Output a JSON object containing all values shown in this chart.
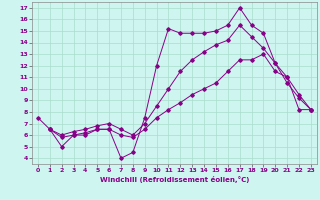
{
  "xlabel": "Windchill (Refroidissement éolien,°C)",
  "bg_color": "#cef5f0",
  "line_color": "#880088",
  "grid_color": "#aaddcc",
  "xlim": [
    -0.5,
    23.5
  ],
  "ylim": [
    3.5,
    17.5
  ],
  "xticks": [
    0,
    1,
    2,
    3,
    4,
    5,
    6,
    7,
    8,
    9,
    10,
    11,
    12,
    13,
    14,
    15,
    16,
    17,
    18,
    19,
    20,
    21,
    22,
    23
  ],
  "yticks": [
    4,
    5,
    6,
    7,
    8,
    9,
    10,
    11,
    12,
    13,
    14,
    15,
    16,
    17
  ],
  "line1_x": [
    0,
    1,
    2,
    3,
    4,
    5,
    6,
    7,
    8,
    9,
    10,
    11,
    12,
    13,
    14,
    15,
    16,
    17,
    18,
    19,
    20,
    21,
    22,
    23
  ],
  "line1_y": [
    7.5,
    6.5,
    5.0,
    6.0,
    6.0,
    6.5,
    6.5,
    4.0,
    4.5,
    7.5,
    12.0,
    15.2,
    14.8,
    14.8,
    14.8,
    15.0,
    15.5,
    17.0,
    15.5,
    14.8,
    12.2,
    10.5,
    9.2,
    8.2
  ],
  "line2_x": [
    1,
    2,
    3,
    4,
    5,
    6,
    7,
    8,
    9,
    10,
    11,
    12,
    13,
    14,
    15,
    16,
    17,
    18,
    19,
    20,
    21,
    22,
    23
  ],
  "line2_y": [
    6.5,
    6.0,
    6.3,
    6.5,
    6.8,
    7.0,
    6.5,
    6.0,
    7.0,
    8.5,
    10.0,
    11.5,
    12.5,
    13.2,
    13.8,
    14.2,
    15.5,
    14.5,
    13.5,
    12.2,
    11.0,
    9.5,
    8.2
  ],
  "line3_x": [
    1,
    2,
    3,
    4,
    5,
    6,
    7,
    8,
    9,
    10,
    11,
    12,
    13,
    14,
    15,
    16,
    17,
    18,
    19,
    20,
    21,
    22,
    23
  ],
  "line3_y": [
    6.5,
    5.8,
    6.0,
    6.2,
    6.5,
    6.5,
    6.0,
    5.8,
    6.5,
    7.5,
    8.2,
    8.8,
    9.5,
    10.0,
    10.5,
    11.5,
    12.5,
    12.5,
    13.0,
    11.5,
    11.0,
    8.2,
    8.2
  ]
}
